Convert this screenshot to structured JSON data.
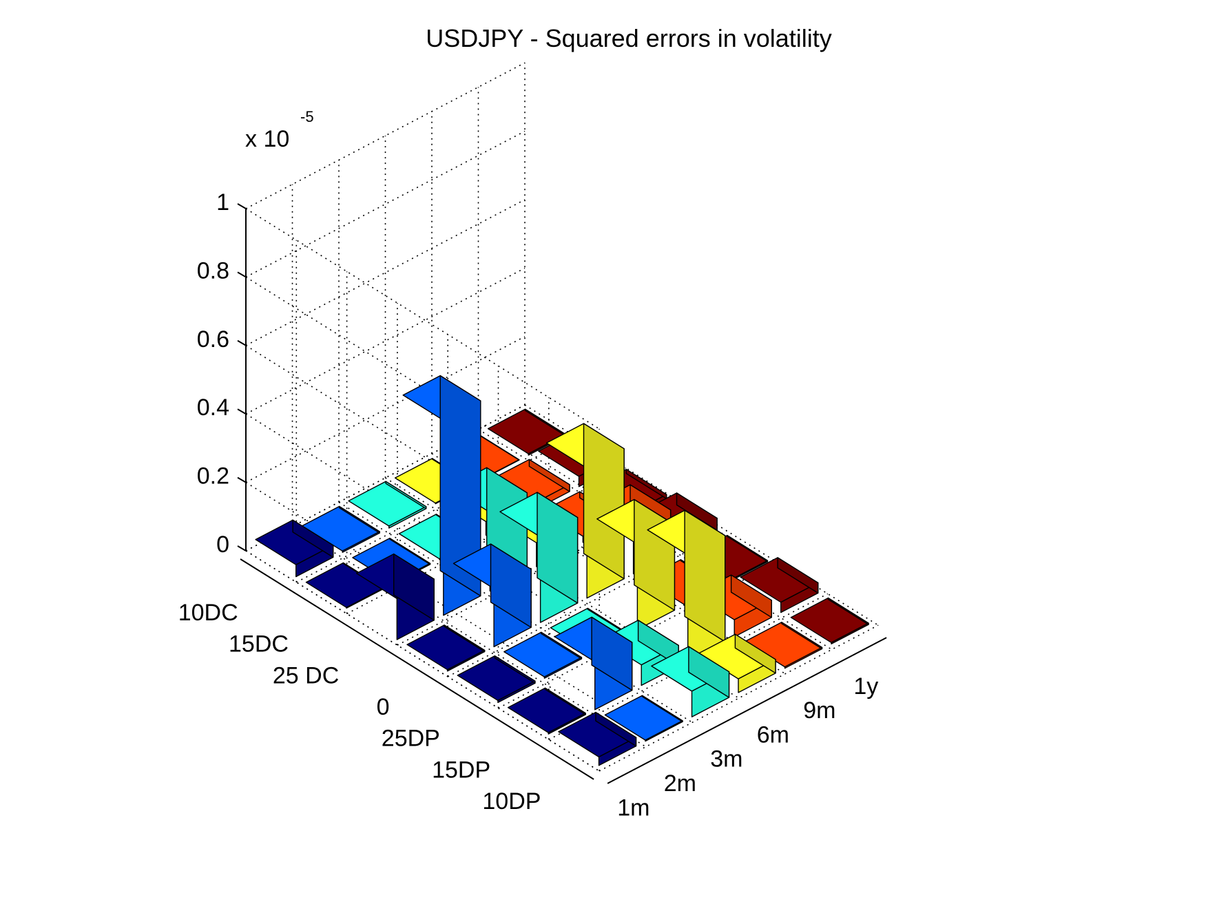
{
  "chart_data": {
    "type": "bar3d",
    "title": "USDJPY - Squared errors in volatility",
    "z_multiplier_label": "x 10",
    "z_multiplier_exponent": "-5",
    "zlim": [
      0,
      1
    ],
    "z_ticks": [
      0,
      0.2,
      0.4,
      0.6,
      0.8,
      1
    ],
    "z_tick_labels": [
      "0",
      "0.2",
      "0.4",
      "0.6",
      "0.8",
      "1"
    ],
    "strikes": [
      "10DC",
      "15DC",
      "25 DC",
      "0",
      "25DP",
      "15DP",
      "10DP"
    ],
    "maturities": [
      "1m",
      "2m",
      "3m",
      "6m",
      "9m",
      "1y"
    ],
    "series_colors": [
      "#00007f",
      "#0062ff",
      "#22ffdd",
      "#ffff22",
      "#ff4400",
      "#800000"
    ],
    "grid": true,
    "values": [
      [
        0.035,
        0.004,
        0.006,
        0.002,
        0.001,
        0.004
      ],
      [
        0.002,
        0.003,
        0.002,
        0.04,
        0.02,
        0.03
      ],
      [
        0.12,
        0.57,
        0.23,
        0.07,
        0.018,
        0.012
      ],
      [
        0.004,
        0.17,
        0.25,
        0.38,
        0.13,
        0.035
      ],
      [
        0.006,
        0.004,
        0.003,
        0.25,
        0.003,
        0.003
      ],
      [
        0.004,
        0.14,
        0.06,
        0.31,
        0.05,
        0.03
      ],
      [
        0.025,
        0.003,
        0.075,
        0.04,
        0.004,
        0.004
      ]
    ]
  }
}
